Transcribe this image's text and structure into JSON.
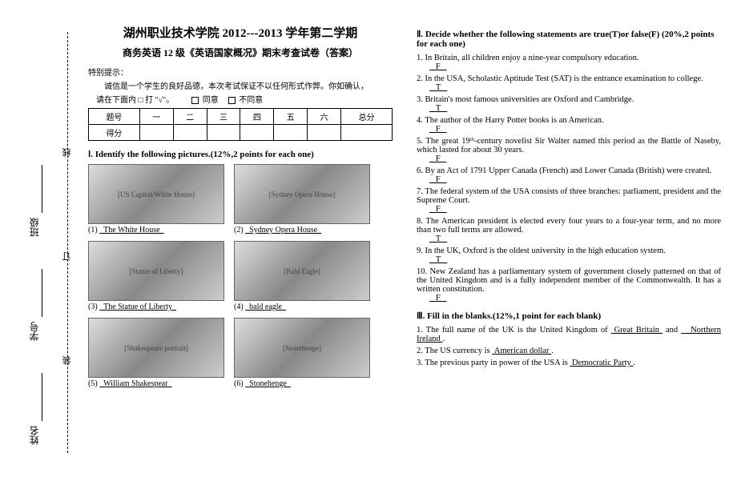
{
  "binding": {
    "labels": [
      "姓名",
      "学号",
      "班级"
    ],
    "markers": [
      "装",
      "订",
      "线"
    ]
  },
  "header": {
    "title": "湖州职业技术学院 2012---2013 学年第二学期",
    "subtitle": "商务英语 12 级《英语国家概况》期末考查试卷（答案）",
    "note_label": "特别提示：",
    "note_text": "诚信是一个学生的良好品德，本次考试保证不以任何形式作弊。你如确认，",
    "note_check_prefix": "请在下面内 □ 打 \"√\"。",
    "agree": "同意",
    "disagree": "不同意"
  },
  "score_table": {
    "row1": [
      "题号",
      "一",
      "二",
      "三",
      "四",
      "五",
      "六",
      "总分"
    ],
    "row2": [
      "得分",
      "",
      "",
      "",
      "",
      "",
      "",
      ""
    ]
  },
  "section1": {
    "title": "Ⅰ. Identify the following pictures.(12%,2 points for each one)",
    "items": [
      {
        "num": "(1)",
        "answer": "The White House",
        "img": "[US Capitol/White House]"
      },
      {
        "num": "(2)",
        "answer": "Sydney Opera House",
        "img": "[Sydney Opera House]"
      },
      {
        "num": "(3)",
        "answer": "The Statue of Liberty",
        "img": "[Statue of Liberty]"
      },
      {
        "num": "(4)",
        "answer": "bald eagle",
        "img": "[Bald Eagle]"
      },
      {
        "num": "(5)",
        "answer": "William Shakespear",
        "img": "[Shakespeare portrait]"
      },
      {
        "num": "(6)",
        "answer": "Stonehenge",
        "img": "[Stonehenge]"
      }
    ]
  },
  "section2": {
    "title": "Ⅱ. Decide whether the following statements are true(T)or false(F) (20%,2 points for each one)",
    "items": [
      {
        "num": "1.",
        "text": "In Britain, all children enjoy a nine-year compulsory education.",
        "ans": "F"
      },
      {
        "num": "2.",
        "text": "In the USA, Scholastic Aptitude Test (SAT) is the entrance examination to college.",
        "ans": "T"
      },
      {
        "num": "3.",
        "text": "Britain's most famous universities are Oxford and Cambridge.",
        "ans": "T"
      },
      {
        "num": "4.",
        "text": "The author of the Harry Potter books is an American.",
        "ans": "F"
      },
      {
        "num": "5.",
        "text": "The great 19ᵗʰ-century novelist Sir Walter named this period as the Battle of Naseby, which lasted for about 30 years.",
        "ans": "F"
      },
      {
        "num": "6.",
        "text": "By an Act of 1791 Upper Canada (French) and Lower Canada (British) were created.",
        "ans": "F"
      },
      {
        "num": "7.",
        "text": "The federal system of the USA consists of three branches: parliament, president and the Supreme Court.",
        "ans": "F"
      },
      {
        "num": "8.",
        "text": "The American president is elected every four years to a four-year term, and no more than two full terms are allowed.",
        "ans": "T"
      },
      {
        "num": "9.",
        "text": "In the UK, Oxford is the oldest university in the high education system.",
        "ans": "T"
      },
      {
        "num": "10.",
        "text": "New Zealand has a parliamentary system of government closely patterned on that of the United Kingdom and is a fully independent member of the Commonwealth. It has a written constitution.",
        "ans": "F"
      }
    ]
  },
  "section3": {
    "title": "Ⅲ. Fill in the blanks.(12%,1 point for each blank)",
    "items": [
      {
        "num": "1.",
        "pre": "The full name of the UK is the United Kingdom of ",
        "b1": "Great Britain",
        "mid": " and ",
        "b2": "Northern Ireland",
        "post": "."
      },
      {
        "num": "2.",
        "pre": "The US currency is ",
        "b1": "American dollar",
        "post": "."
      },
      {
        "num": "3.",
        "pre": "The previous party in power of the USA is ",
        "b1": "Democratic Party",
        "post": "."
      }
    ]
  }
}
